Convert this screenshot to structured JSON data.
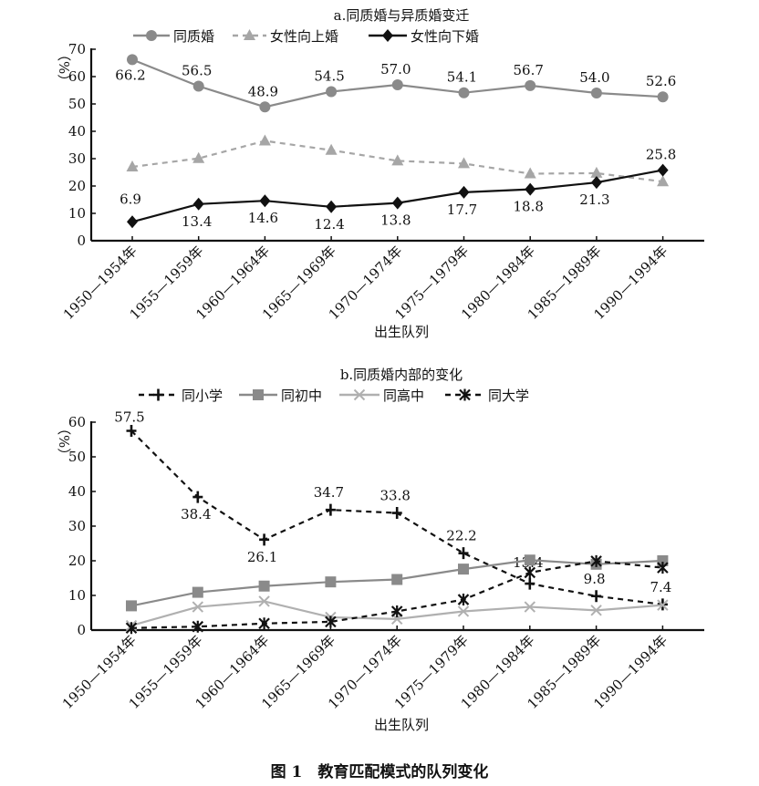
{
  "caption": "图 1　教育匹配模式的队列变化",
  "chart_data": [
    {
      "type": "line",
      "title": "a.同质婚与异质婚变迁",
      "xlabel": "出生队列",
      "ylabel": "（%）",
      "ylim": [
        0,
        70
      ],
      "yticks": [
        0,
        10,
        20,
        30,
        40,
        50,
        60,
        70
      ],
      "grid": false,
      "legend": "top",
      "categories": [
        "1950—1954年",
        "1955—1959年",
        "1960—1964年",
        "1965—1969年",
        "1970—1974年",
        "1975—1979年",
        "1980—1984年",
        "1985—1989年",
        "1990—1994年"
      ],
      "series": [
        {
          "name": "同质婚",
          "marker": "circle",
          "line": "solid",
          "color": "#8a8a8a",
          "labeled": true,
          "values": [
            66.2,
            56.5,
            48.9,
            54.5,
            57.0,
            54.1,
            56.7,
            54.0,
            52.6
          ],
          "labels": [
            "66.2",
            "56.5",
            "48.9",
            "54.5",
            "57.0",
            "54.1",
            "56.7",
            "54.0",
            "52.6"
          ]
        },
        {
          "name": "女性向上婚",
          "marker": "triangle",
          "line": "dashed",
          "color": "#a6a6a6",
          "labeled": false,
          "values": [
            27.0,
            30.1,
            36.5,
            33.1,
            29.2,
            28.2,
            24.5,
            24.7,
            21.6
          ]
        },
        {
          "name": "女性向下婚",
          "marker": "diamond",
          "line": "solid",
          "color": "#111111",
          "labeled": true,
          "values": [
            6.9,
            13.4,
            14.6,
            12.4,
            13.8,
            17.7,
            18.8,
            21.3,
            25.8
          ],
          "labels": [
            "6.9",
            "13.4",
            "14.6",
            "12.4",
            "13.8",
            "17.7",
            "18.8",
            "21.3",
            "25.8"
          ]
        }
      ]
    },
    {
      "type": "line",
      "title": "b.同质婚内部的变化",
      "xlabel": "出生队列",
      "ylabel": "（%）",
      "ylim": [
        0,
        60
      ],
      "yticks": [
        0,
        10,
        20,
        30,
        40,
        50,
        60
      ],
      "grid": false,
      "legend": "top",
      "categories": [
        "1950—1954年",
        "1955—1959年",
        "1960—1964年",
        "1965—1969年",
        "1970—1974年",
        "1975—1979年",
        "1980—1984年",
        "1985—1989年",
        "1990—1994年"
      ],
      "series": [
        {
          "name": "同小学",
          "marker": "plus",
          "line": "dashed",
          "color": "#111111",
          "labeled": true,
          "values": [
            57.5,
            38.4,
            26.1,
            34.7,
            33.8,
            22.2,
            13.4,
            9.8,
            7.4
          ],
          "labels": [
            "57.5",
            "38.4",
            "26.1",
            "34.7",
            "33.8",
            "22.2",
            "13.4",
            "9.8",
            "7.4"
          ]
        },
        {
          "name": "同初中",
          "marker": "square",
          "line": "solid",
          "color": "#8a8a8a",
          "labeled": false,
          "values": [
            7.0,
            10.9,
            12.7,
            13.9,
            14.6,
            17.6,
            20.2,
            19.0,
            20.0
          ]
        },
        {
          "name": "同高中",
          "marker": "x",
          "line": "solid",
          "color": "#b0b0b0",
          "labeled": false,
          "values": [
            1.3,
            6.7,
            8.3,
            3.7,
            3.2,
            5.4,
            6.7,
            5.7,
            7.2
          ]
        },
        {
          "name": "同大学",
          "marker": "asterisk",
          "line": "dashed",
          "color": "#111111",
          "labeled": false,
          "values": [
            0.6,
            1.0,
            1.9,
            2.4,
            5.4,
            8.8,
            16.6,
            19.9,
            18.0
          ]
        }
      ]
    }
  ]
}
